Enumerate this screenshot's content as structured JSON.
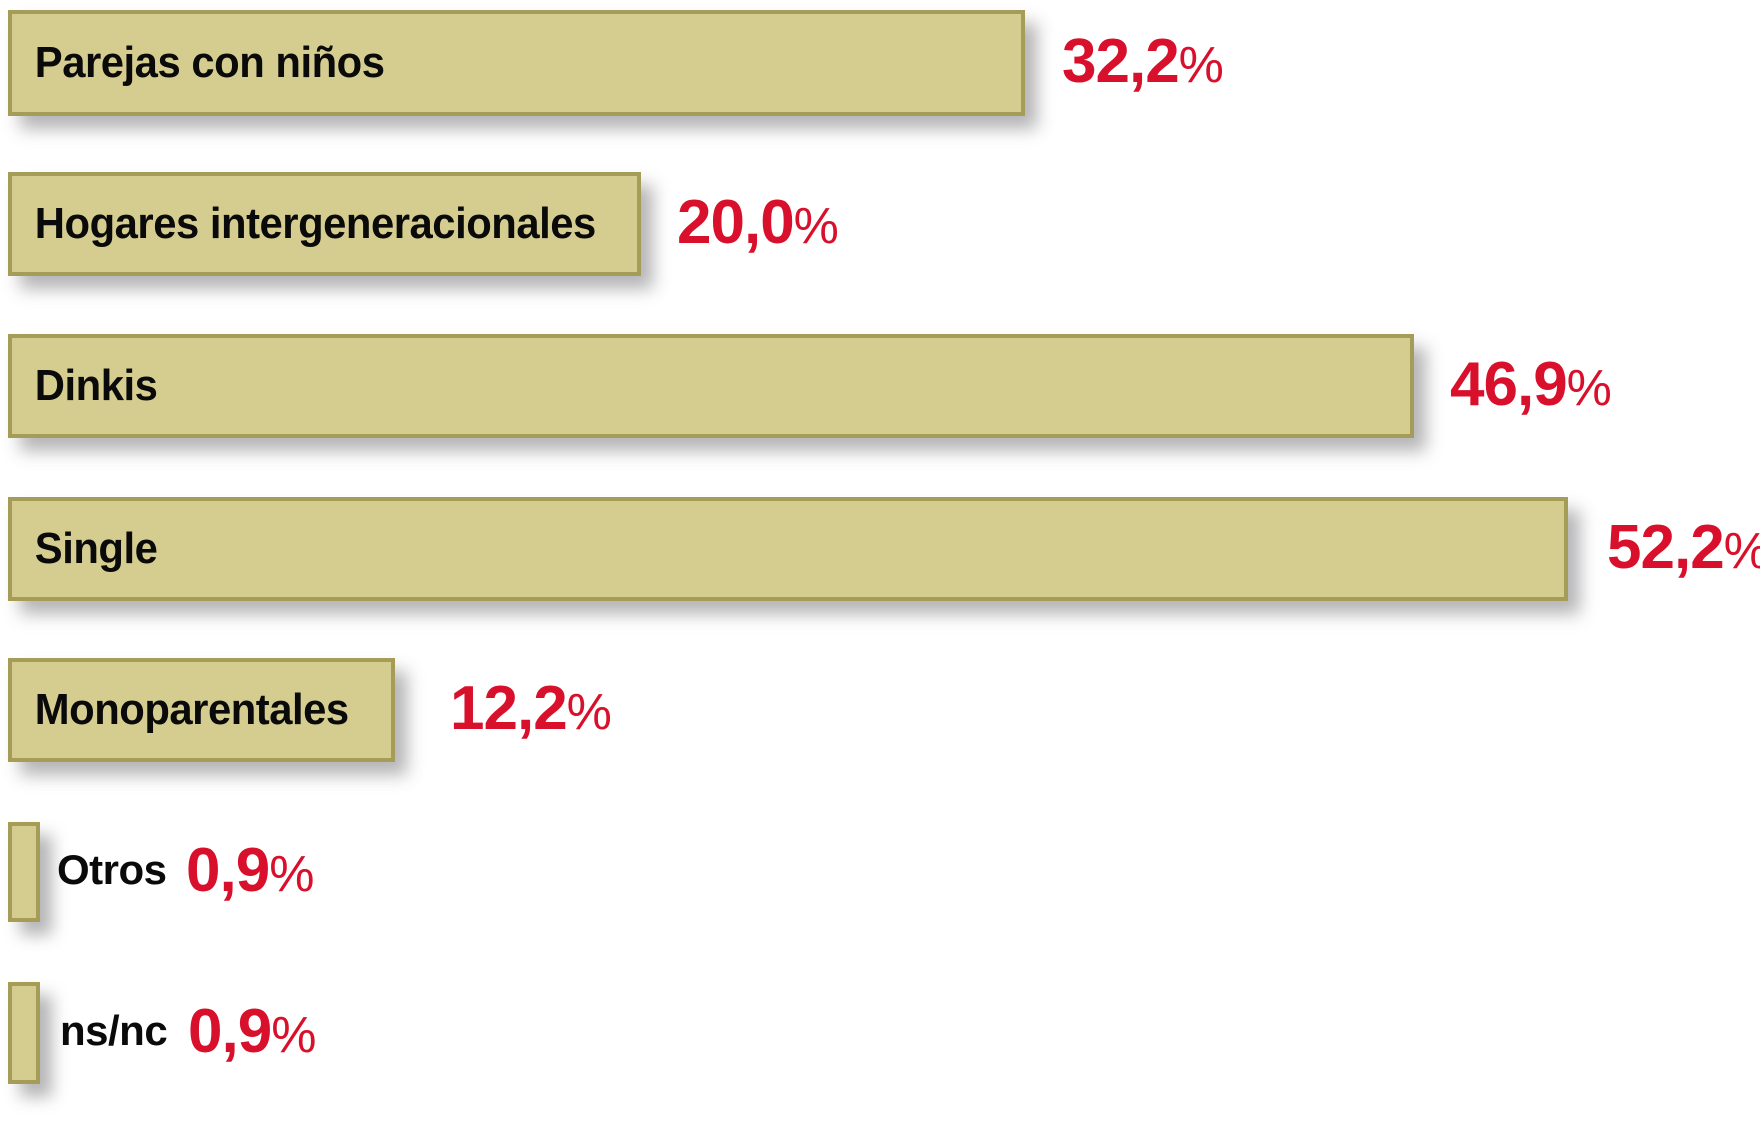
{
  "chart_data": {
    "type": "bar",
    "orientation": "horizontal",
    "title": "",
    "xlabel": "",
    "ylabel": "",
    "xlim": [
      0,
      55
    ],
    "grid": false,
    "legend": null,
    "categories": [
      "Parejas con niños",
      "Hogares intergeneracionales",
      "Dinkis",
      "Single",
      "Monoparentales",
      "Otros",
      "ns/nc"
    ],
    "values": [
      32.2,
      20.0,
      46.9,
      52.2,
      12.2,
      0.9,
      0.9
    ],
    "display_values": [
      "32,2",
      "20,0",
      "46,9",
      "52,2",
      "12,2",
      "0,9",
      "0,9"
    ],
    "value_suffix": "%",
    "colors": {
      "bar_fill": "#d5cd90",
      "bar_border": "#a59c58",
      "value_text": "#d8102b",
      "category_text": "#0a0a0a",
      "background": "#ffffff"
    }
  }
}
